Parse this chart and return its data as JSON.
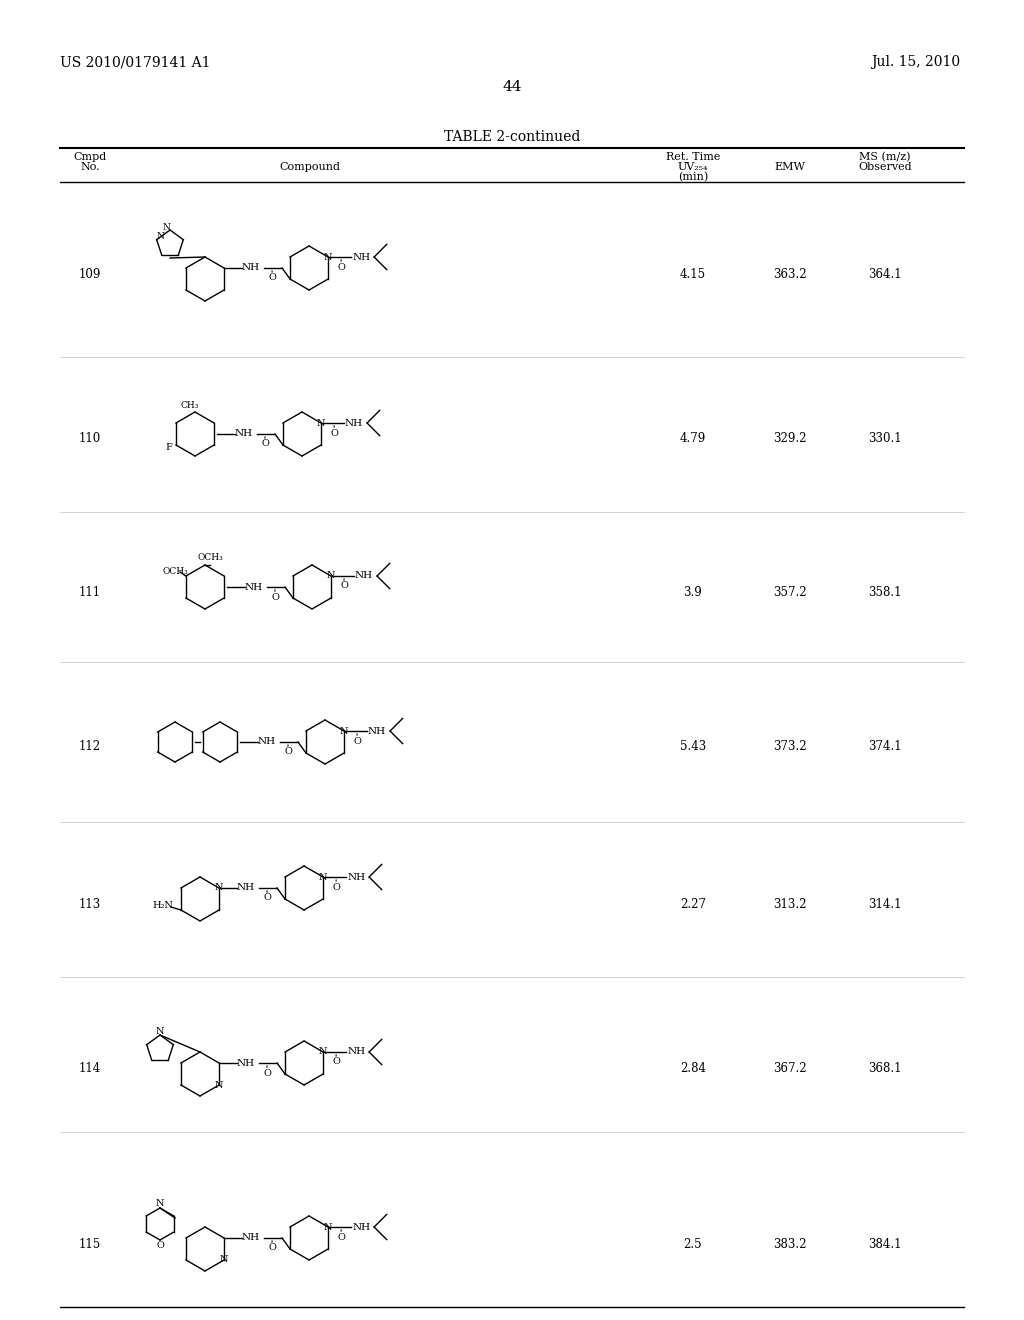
{
  "header_left": "US 2010/0179141 A1",
  "header_right": "Jul. 15, 2010",
  "page_number": "44",
  "table_title": "TABLE 2-continued",
  "col_headers": [
    "Cmpd\nNo.",
    "Compound",
    "Ret. Time\nUV₂₅₄\n(min)",
    "EMW",
    "MS (m/z)\nObserved"
  ],
  "compounds": [
    {
      "no": "109",
      "ret_time": "4.15",
      "emw": "363.2",
      "ms": "364.1"
    },
    {
      "no": "110",
      "ret_time": "4.79",
      "emw": "329.2",
      "ms": "330.1"
    },
    {
      "no": "111",
      "ret_time": "3.9",
      "emw": "357.2",
      "ms": "358.1"
    },
    {
      "no": "112",
      "ret_time": "5.43",
      "emw": "373.2",
      "ms": "374.1"
    },
    {
      "no": "113",
      "ret_time": "2.27",
      "emw": "313.2",
      "ms": "314.1"
    },
    {
      "no": "114",
      "ret_time": "2.84",
      "emw": "367.2",
      "ms": "368.1"
    },
    {
      "no": "115",
      "ret_time": "2.5",
      "emw": "383.2",
      "ms": "384.1"
    }
  ],
  "bg_color": "#ffffff",
  "text_color": "#000000"
}
